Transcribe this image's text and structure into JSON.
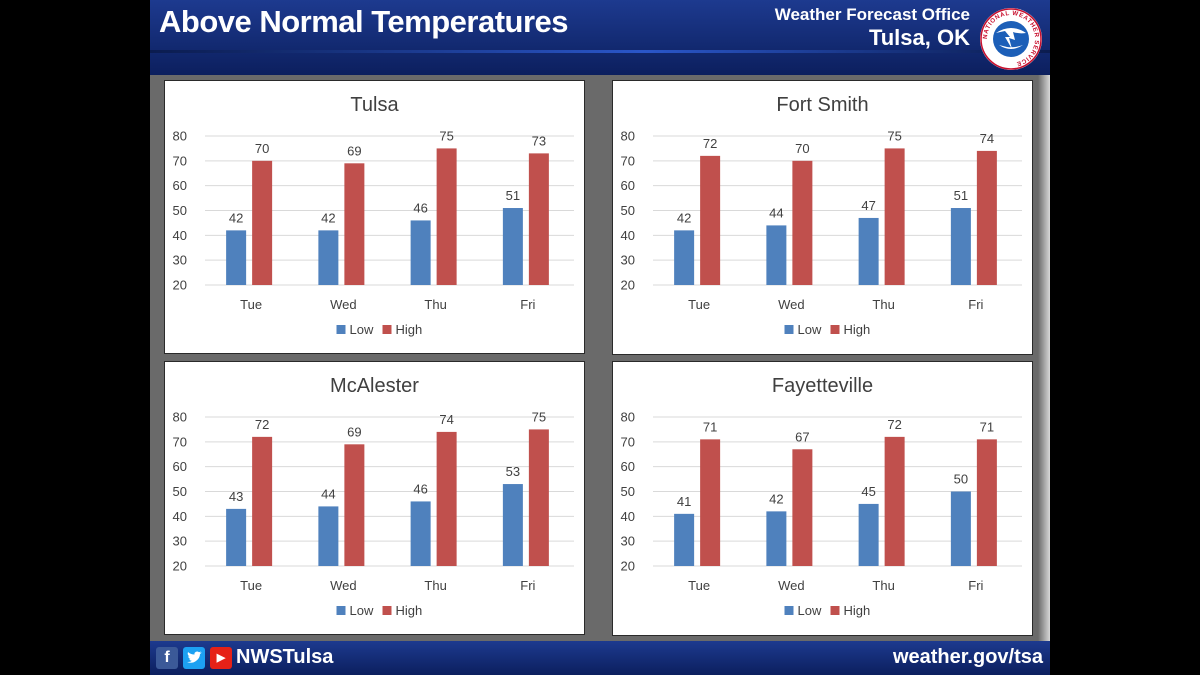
{
  "header": {
    "title": "Above Normal Temperatures",
    "office": "Weather Forecast Office",
    "city": "Tulsa, OK",
    "logo_text": "NATIONAL WEATHER SERVICE"
  },
  "footer": {
    "handle": "NWSTulsa",
    "url": "weather.gov/tsa"
  },
  "colors": {
    "low": "#4f81bd",
    "high": "#c0504d",
    "header_blue": "#0c1f5e",
    "panel_background": "#6a6a6a"
  },
  "chart_data": [
    {
      "type": "bar",
      "title": "Tulsa",
      "categories": [
        "Tue",
        "Wed",
        "Thu",
        "Fri"
      ],
      "series": [
        {
          "name": "Low",
          "values": [
            42,
            42,
            46,
            51
          ]
        },
        {
          "name": "High",
          "values": [
            70,
            69,
            75,
            73
          ]
        }
      ],
      "ylim": [
        20,
        80
      ],
      "yticks": [
        20,
        30,
        40,
        50,
        60,
        70,
        80
      ],
      "grid": true,
      "legend": "bottom"
    },
    {
      "type": "bar",
      "title": "Fort Smith",
      "categories": [
        "Tue",
        "Wed",
        "Thu",
        "Fri"
      ],
      "series": [
        {
          "name": "Low",
          "values": [
            42,
            44,
            47,
            51
          ]
        },
        {
          "name": "High",
          "values": [
            72,
            70,
            75,
            74
          ]
        }
      ],
      "ylim": [
        20,
        80
      ],
      "yticks": [
        20,
        30,
        40,
        50,
        60,
        70,
        80
      ],
      "grid": true,
      "legend": "bottom"
    },
    {
      "type": "bar",
      "title": "McAlester",
      "categories": [
        "Tue",
        "Wed",
        "Thu",
        "Fri"
      ],
      "series": [
        {
          "name": "Low",
          "values": [
            43,
            44,
            46,
            53
          ]
        },
        {
          "name": "High",
          "values": [
            72,
            69,
            74,
            75
          ]
        }
      ],
      "ylim": [
        20,
        80
      ],
      "yticks": [
        20,
        30,
        40,
        50,
        60,
        70,
        80
      ],
      "grid": true,
      "legend": "bottom"
    },
    {
      "type": "bar",
      "title": "Fayetteville",
      "categories": [
        "Tue",
        "Wed",
        "Thu",
        "Fri"
      ],
      "series": [
        {
          "name": "Low",
          "values": [
            41,
            42,
            45,
            50
          ]
        },
        {
          "name": "High",
          "values": [
            71,
            67,
            72,
            71
          ]
        }
      ],
      "ylim": [
        20,
        80
      ],
      "yticks": [
        20,
        30,
        40,
        50,
        60,
        70,
        80
      ],
      "grid": true,
      "legend": "bottom"
    }
  ]
}
